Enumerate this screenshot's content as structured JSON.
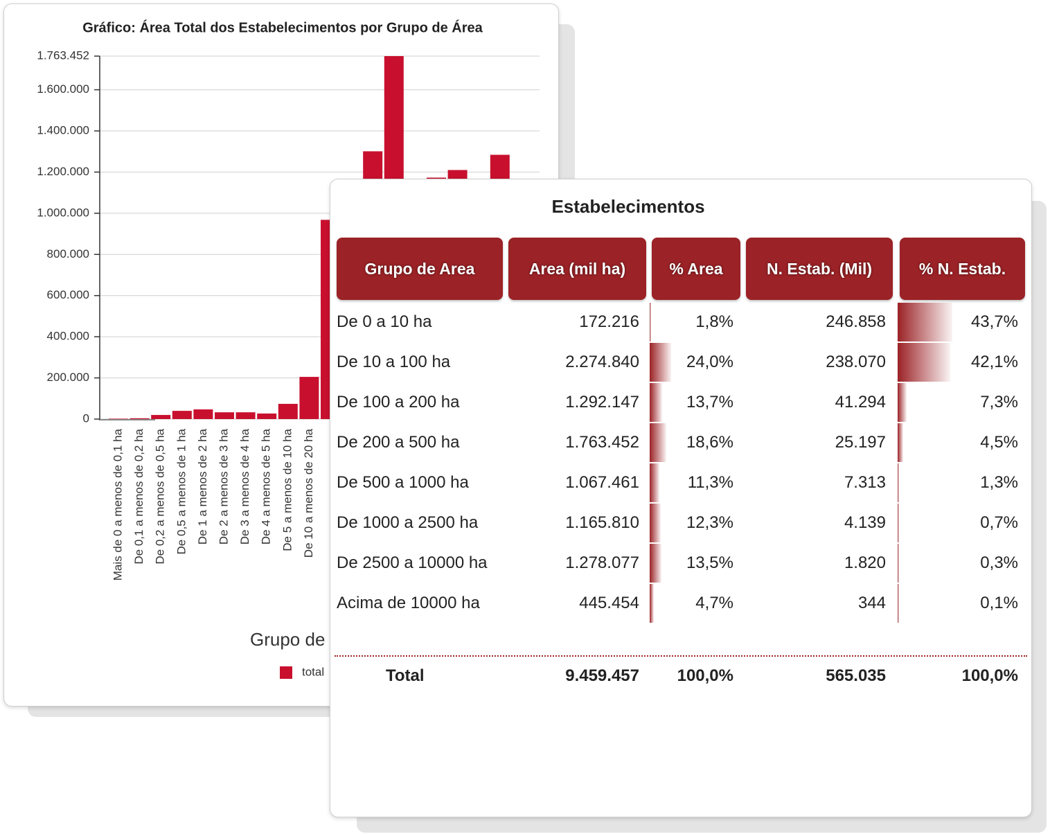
{
  "chart_data": {
    "type": "bar",
    "title": "Gráfico: Área Total dos Estabelecimentos por Grupo de Área",
    "x_label": "Grupo de Área",
    "categories": [
      "Mais de 0 a menos de 0,1 ha",
      "De 0,1 a menos de 0,2 ha",
      "De 0,2 a menos de 0,5 ha",
      "De 0,5 a menos de 1 ha",
      "De 1 a menos de 2 ha",
      "De 2 a menos de 3 ha",
      "De 3 a menos de 4 ha",
      "De 4 a menos de 5 ha",
      "De 5 a menos de 10 ha",
      "De 10 a menos de 20 ha",
      null,
      null,
      null,
      null,
      null,
      null,
      null,
      null,
      null
    ],
    "series": [
      {
        "name": "total",
        "color": "#c8102e",
        "values": [
          2000,
          4000,
          20000,
          40000,
          47000,
          33000,
          33000,
          27000,
          74000,
          205000,
          968000,
          null,
          1301000,
          1763452,
          null,
          1173000,
          1210000,
          null,
          1284000
        ]
      }
    ],
    "ylim": [
      0,
      1763452
    ],
    "yticks": [
      0,
      {
        "value": 200000,
        "label": "200.000"
      },
      {
        "value": 400000,
        "label": "400.000"
      },
      {
        "value": 600000,
        "label": "600.000"
      },
      {
        "value": 800000,
        "label": "800.000"
      },
      {
        "value": 1000000,
        "label": "1.000.000"
      },
      {
        "value": 1200000,
        "label": "1.200.000"
      },
      {
        "value": 1400000,
        "label": "1.400.000"
      },
      {
        "value": 1600000,
        "label": "1.600.000"
      },
      {
        "value": 1763452,
        "label": "1.763.452"
      }
    ],
    "grid": true
  },
  "table": {
    "title": "Estabelecimentos",
    "headers": [
      "Grupo de Area",
      "Area (mil ha)",
      "% Area",
      "N. Estab. (Mil)",
      "% N. Estab."
    ],
    "rows": [
      [
        "De 0 a 10 ha",
        "172.216",
        "1,8%",
        "246.858",
        "43,7%"
      ],
      [
        "De 10 a 100 ha",
        "2.274.840",
        "24,0%",
        "238.070",
        "42,1%"
      ],
      [
        "De 100 a 200 ha",
        "1.292.147",
        "13,7%",
        "41.294",
        "7,3%"
      ],
      [
        "De 200 a 500 ha",
        "1.763.452",
        "18,6%",
        "25.197",
        "4,5%"
      ],
      [
        "De 500 a 1000 ha",
        "1.067.461",
        "11,3%",
        "7.313",
        "1,3%"
      ],
      [
        "De 1000 a 2500 ha",
        "1.165.810",
        "12,3%",
        "4.139",
        "0,7%"
      ],
      [
        "De 2500 a 10000 ha",
        "1.278.077",
        "13,5%",
        "1.820",
        "0,3%"
      ],
      [
        "Acima de 10000 ha",
        "445.454",
        "4,7%",
        "344",
        "0,1%"
      ]
    ],
    "total": [
      "Total",
      "9.459.457",
      "100,0%",
      "565.035",
      "100,0%"
    ]
  }
}
